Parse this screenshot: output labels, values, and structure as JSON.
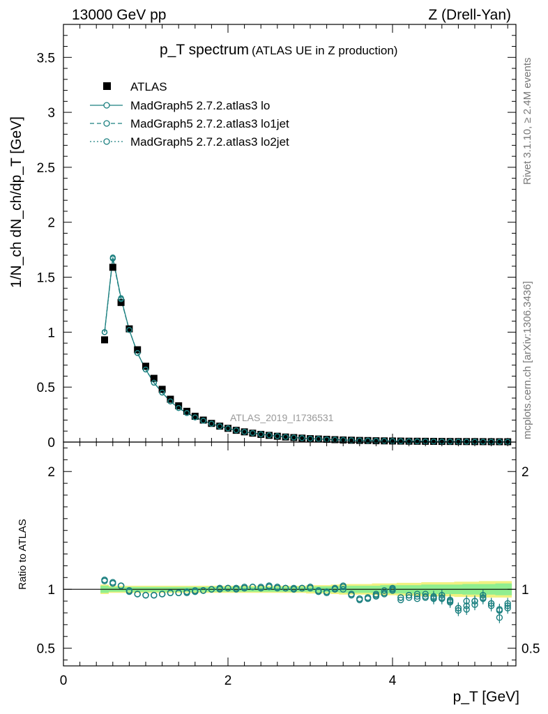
{
  "header": {
    "left": "13000 GeV pp",
    "right": "Z (Drell-Yan)"
  },
  "side": {
    "top": "Rivet 3.1.10, ≥ 2.4M events",
    "bottom": "mcplots.cern.ch [arXiv:1306.3436]"
  },
  "watermark": "ATLAS_2019_I1736531",
  "colors": {
    "mc": "#1a7f7f",
    "band_inner": "#90ee90",
    "band_outer": "#f0f080"
  },
  "chart_data": [
    {
      "type": "scatter",
      "title": "p_T spectrum",
      "subtitle": "(ATLAS UE in Z production)",
      "ylabel": "1/N_ch dN_ch/dp_T [GeV]",
      "xlabel": "",
      "xlim": [
        0,
        5.5
      ],
      "ylim": [
        0,
        3.8
      ],
      "yticks": [
        "0",
        "0.5",
        "1",
        "1.5",
        "2",
        "2.5",
        "3",
        "3.5"
      ],
      "legend_position": "top-left",
      "legend": [
        "ATLAS",
        "MadGraph5 2.7.2.atlas3 lo",
        "MadGraph5 2.7.2.atlas3 lo1jet",
        "MadGraph5 2.7.2.atlas3 lo2jet"
      ],
      "x": [
        0.5,
        0.6,
        0.7,
        0.8,
        0.9,
        1.0,
        1.1,
        1.2,
        1.3,
        1.4,
        1.5,
        1.6,
        1.7,
        1.8,
        1.9,
        2.0,
        2.1,
        2.2,
        2.3,
        2.4,
        2.5,
        2.6,
        2.7,
        2.8,
        2.9,
        3.0,
        3.1,
        3.2,
        3.3,
        3.4,
        3.5,
        3.6,
        3.7,
        3.8,
        3.9,
        4.0,
        4.1,
        4.2,
        4.3,
        4.4,
        4.5,
        4.6,
        4.7,
        4.8,
        4.9,
        5.0,
        5.1,
        5.2,
        5.3,
        5.4
      ],
      "series": [
        {
          "name": "ATLAS",
          "values": [
            0.93,
            1.59,
            1.27,
            1.03,
            0.84,
            0.69,
            0.58,
            0.48,
            0.39,
            0.33,
            0.28,
            0.235,
            0.2,
            0.17,
            0.145,
            0.125,
            0.107,
            0.093,
            0.081,
            0.07,
            0.061,
            0.053,
            0.046,
            0.041,
            0.036,
            0.031,
            0.028,
            0.025,
            0.022,
            0.019,
            0.017,
            0.015,
            0.014,
            0.012,
            0.011,
            0.01,
            0.009,
            0.008,
            0.0075,
            0.007,
            0.0063,
            0.0058,
            0.0053,
            0.0049,
            0.0045,
            0.0041,
            0.0038,
            0.0035,
            0.0032,
            0.003
          ]
        },
        {
          "name": "MadGraph5 2.7.2.atlas3 lo",
          "values": [
            1.0,
            1.68,
            1.31,
            1.02,
            0.81,
            0.66,
            0.54,
            0.45,
            0.37,
            0.31,
            0.265,
            0.225,
            0.195,
            0.167,
            0.143,
            0.125,
            0.107,
            0.093,
            0.082,
            0.071,
            0.062,
            0.054,
            0.047,
            0.041,
            0.036,
            0.031,
            0.028,
            0.024,
            0.021,
            0.019,
            0.016,
            0.014,
            0.013,
            0.012,
            0.011,
            0.0095,
            0.0082,
            0.0075,
            0.0068,
            0.0064,
            0.0057,
            0.0052,
            0.0046,
            0.0043,
            0.0039,
            0.0037,
            0.0034,
            0.003,
            0.0028,
            0.0026
          ]
        },
        {
          "name": "MadGraph5 2.7.2.atlas3 lo1jet",
          "values": [
            1.0,
            1.67,
            1.3,
            1.02,
            0.81,
            0.66,
            0.54,
            0.45,
            0.37,
            0.31,
            0.264,
            0.224,
            0.194,
            0.167,
            0.143,
            0.125,
            0.107,
            0.093,
            0.082,
            0.071,
            0.062,
            0.054,
            0.047,
            0.041,
            0.036,
            0.031,
            0.028,
            0.024,
            0.021,
            0.019,
            0.016,
            0.014,
            0.013,
            0.012,
            0.011,
            0.0094,
            0.0082,
            0.0075,
            0.0068,
            0.0064,
            0.0057,
            0.0052,
            0.0046,
            0.0043,
            0.0039,
            0.0037,
            0.0034,
            0.003,
            0.0028,
            0.0026
          ]
        },
        {
          "name": "MadGraph5 2.7.2.atlas3 lo2jet",
          "values": [
            1.0,
            1.67,
            1.3,
            1.02,
            0.81,
            0.66,
            0.54,
            0.45,
            0.37,
            0.31,
            0.264,
            0.224,
            0.194,
            0.167,
            0.143,
            0.125,
            0.107,
            0.093,
            0.082,
            0.071,
            0.062,
            0.054,
            0.047,
            0.041,
            0.036,
            0.031,
            0.028,
            0.024,
            0.021,
            0.019,
            0.016,
            0.014,
            0.013,
            0.012,
            0.011,
            0.0094,
            0.0082,
            0.0075,
            0.0068,
            0.0064,
            0.0057,
            0.0052,
            0.0046,
            0.0043,
            0.0039,
            0.0037,
            0.0034,
            0.003,
            0.0028,
            0.0026
          ]
        }
      ]
    },
    {
      "type": "scatter",
      "title": "",
      "ylabel": "Ratio to ATLAS",
      "xlabel": "p_T [GeV]",
      "xlim": [
        0,
        5.5
      ],
      "ylim": [
        0.35,
        2.25
      ],
      "xticks": [
        "0",
        "2",
        "4"
      ],
      "yticks": [
        "0.5",
        "1",
        "2"
      ],
      "x": [
        0.5,
        0.6,
        0.7,
        0.8,
        0.9,
        1.0,
        1.1,
        1.2,
        1.3,
        1.4,
        1.5,
        1.6,
        1.7,
        1.8,
        1.9,
        2.0,
        2.1,
        2.2,
        2.3,
        2.4,
        2.5,
        2.6,
        2.7,
        2.8,
        2.9,
        3.0,
        3.1,
        3.2,
        3.3,
        3.4,
        3.5,
        3.6,
        3.7,
        3.8,
        3.9,
        4.0,
        4.1,
        4.2,
        4.3,
        4.4,
        4.5,
        4.6,
        4.7,
        4.8,
        4.9,
        5.0,
        5.1,
        5.2,
        5.3,
        5.4
      ],
      "band_inner": [
        0.03,
        0.02,
        0.02,
        0.02,
        0.02,
        0.02,
        0.02,
        0.02,
        0.02,
        0.02,
        0.02,
        0.02,
        0.02,
        0.02,
        0.02,
        0.02,
        0.02,
        0.02,
        0.02,
        0.02,
        0.02,
        0.02,
        0.02,
        0.02,
        0.02,
        0.02,
        0.025,
        0.025,
        0.025,
        0.03,
        0.03,
        0.03,
        0.03,
        0.03,
        0.035,
        0.035,
        0.035,
        0.035,
        0.035,
        0.04,
        0.04,
        0.04,
        0.04,
        0.04,
        0.045,
        0.045,
        0.045,
        0.045,
        0.05,
        0.05
      ],
      "band_outer": [
        0.04,
        0.03,
        0.03,
        0.03,
        0.03,
        0.03,
        0.03,
        0.03,
        0.03,
        0.03,
        0.03,
        0.03,
        0.03,
        0.03,
        0.03,
        0.03,
        0.03,
        0.03,
        0.03,
        0.03,
        0.03,
        0.03,
        0.03,
        0.03,
        0.03,
        0.035,
        0.035,
        0.035,
        0.04,
        0.045,
        0.045,
        0.045,
        0.045,
        0.05,
        0.05,
        0.05,
        0.055,
        0.055,
        0.055,
        0.06,
        0.06,
        0.06,
        0.06,
        0.065,
        0.065,
        0.065,
        0.07,
        0.07,
        0.07,
        0.07
      ],
      "series": [
        {
          "name": "MadGraph5 2.7.2.atlas3 lo",
          "values": [
            1.08,
            1.06,
            1.03,
            0.99,
            0.96,
            0.95,
            0.95,
            0.96,
            0.97,
            0.97,
            0.97,
            0.98,
            0.99,
            1.0,
            1.01,
            1.01,
            1.0,
            1.01,
            1.02,
            1.01,
            1.03,
            1.02,
            1.01,
            1.0,
            1.01,
            1.02,
            0.99,
            0.98,
            1.01,
            1.03,
            0.96,
            0.92,
            0.93,
            0.95,
            0.99,
            1.01,
            0.93,
            0.95,
            0.94,
            0.94,
            0.93,
            0.93,
            0.91,
            0.84,
            0.86,
            0.9,
            0.95,
            0.88,
            0.82,
            0.84
          ]
        },
        {
          "name": "MadGraph5 2.7.2.atlas3 lo1jet",
          "values": [
            1.07,
            1.05,
            1.03,
            0.98,
            0.96,
            0.95,
            0.95,
            0.96,
            0.97,
            0.97,
            0.98,
            0.98,
            0.99,
            1.0,
            1.0,
            1.01,
            1.01,
            1.02,
            1.02,
            1.02,
            1.02,
            1.01,
            1.01,
            1.01,
            1.01,
            1.01,
            0.98,
            0.97,
            1.0,
            1.0,
            0.95,
            0.91,
            0.92,
            0.94,
            0.96,
            0.99,
            0.91,
            0.93,
            0.92,
            0.93,
            0.92,
            0.92,
            0.89,
            0.82,
            0.83,
            0.87,
            0.92,
            0.86,
            0.76,
            0.88
          ]
        },
        {
          "name": "MadGraph5 2.7.2.atlas3 lo2jet",
          "values": [
            1.08,
            1.05,
            1.03,
            0.99,
            0.96,
            0.95,
            0.95,
            0.96,
            0.97,
            0.97,
            0.98,
            0.99,
            0.99,
            1.0,
            1.01,
            1.01,
            1.01,
            1.01,
            1.02,
            1.01,
            1.03,
            1.02,
            1.01,
            1.0,
            1.01,
            1.02,
            0.98,
            0.98,
            1.0,
            1.02,
            0.96,
            0.92,
            0.93,
            0.96,
            0.97,
            1.0,
            0.93,
            0.95,
            0.96,
            0.96,
            0.94,
            0.95,
            0.9,
            0.84,
            0.9,
            0.9,
            0.93,
            0.88,
            0.83,
            0.86
          ]
        }
      ]
    }
  ]
}
